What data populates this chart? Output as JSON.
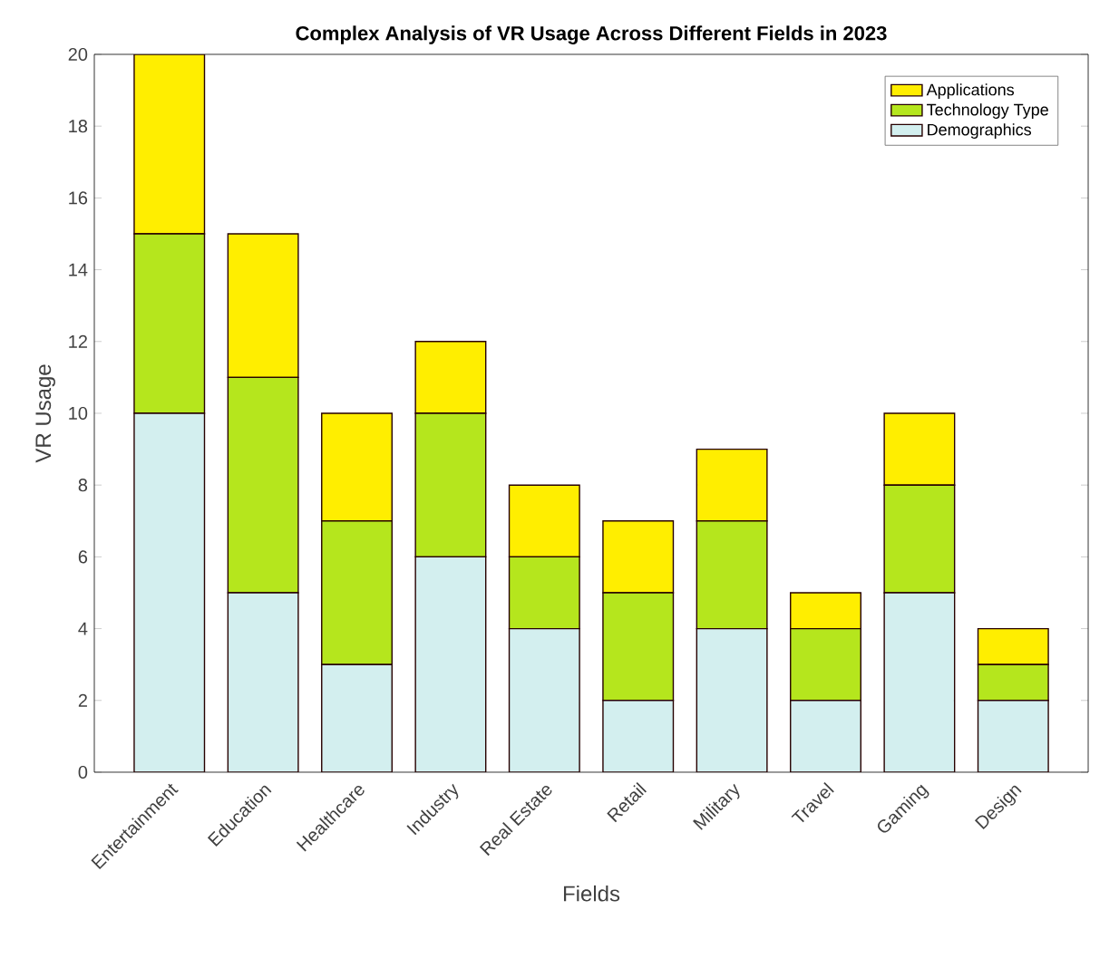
{
  "chart_data": {
    "type": "bar",
    "title": "Complex Analysis of VR Usage Across Different Fields in 2023",
    "xlabel": "Fields",
    "ylabel": "VR Usage",
    "categories": [
      "Entertainment",
      "Education",
      "Healthcare",
      "Industry",
      "Real Estate",
      "Retail",
      "Military",
      "Travel",
      "Gaming",
      "Design"
    ],
    "stacked": true,
    "legend": "top right",
    "grid": false,
    "ylim": [
      0,
      20
    ],
    "yticks": [
      0,
      2,
      4,
      6,
      8,
      10,
      12,
      14,
      16,
      18,
      20
    ],
    "series": [
      {
        "name": "Demographics",
        "color": "#d3efef",
        "values": [
          10,
          5,
          3,
          6,
          4,
          2,
          4,
          2,
          5,
          2
        ]
      },
      {
        "name": "Technology Type",
        "color": "#b5e61d",
        "values": [
          5,
          6,
          4,
          4,
          2,
          3,
          3,
          2,
          3,
          1
        ]
      },
      {
        "name": "Applications",
        "color": "#ffee00",
        "values": [
          5,
          4,
          3,
          2,
          2,
          2,
          2,
          1,
          2,
          1
        ]
      }
    ]
  }
}
